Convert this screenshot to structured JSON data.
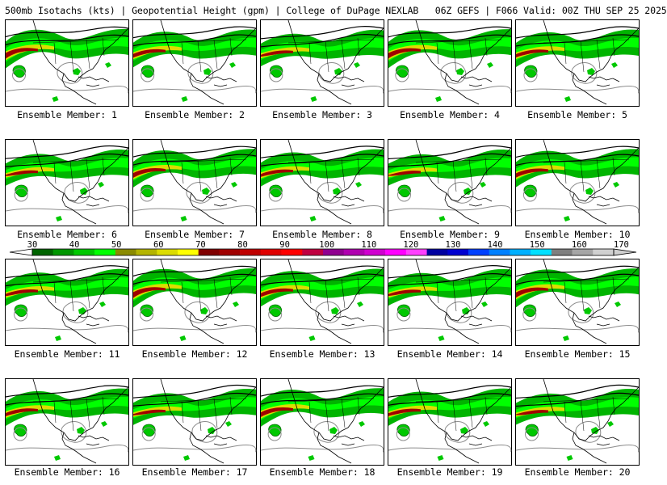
{
  "header": {
    "title": "500mb Isotachs (kts) | Geopotential Height (gpm) | College of DuPage NEXLAB   06Z GEFS | F066 Valid: 00Z THU SEP 25 2025"
  },
  "members": [
    {
      "label": "Ensemble Member: 1"
    },
    {
      "label": "Ensemble Member: 2"
    },
    {
      "label": "Ensemble Member: 3"
    },
    {
      "label": "Ensemble Member: 4"
    },
    {
      "label": "Ensemble Member: 5"
    },
    {
      "label": "Ensemble Member: 6"
    },
    {
      "label": "Ensemble Member: 7"
    },
    {
      "label": "Ensemble Member: 8"
    },
    {
      "label": "Ensemble Member: 9"
    },
    {
      "label": "Ensemble Member: 10"
    },
    {
      "label": "Ensemble Member: 11"
    },
    {
      "label": "Ensemble Member: 12"
    },
    {
      "label": "Ensemble Member: 13"
    },
    {
      "label": "Ensemble Member: 14"
    },
    {
      "label": "Ensemble Member: 15"
    },
    {
      "label": "Ensemble Member: 16"
    },
    {
      "label": "Ensemble Member: 17"
    },
    {
      "label": "Ensemble Member: 18"
    },
    {
      "label": "Ensemble Member: 19"
    },
    {
      "label": "Ensemble Member: 20"
    }
  ],
  "colorbar": {
    "ticks": [
      "30",
      "40",
      "50",
      "60",
      "70",
      "80",
      "90",
      "100",
      "110",
      "120",
      "130",
      "140",
      "150",
      "160",
      "170"
    ],
    "colors": [
      "#006400",
      "#009600",
      "#00c800",
      "#00ff00",
      "#8b8b00",
      "#b4b400",
      "#dcdc00",
      "#ffff00",
      "#800000",
      "#a00000",
      "#c00000",
      "#e00000",
      "#ff0000",
      "#c00040",
      "#900090",
      "#b000b0",
      "#d000d0",
      "#ff00ff",
      "#ff40ff",
      "#0000a0",
      "#0000d0",
      "#0040ff",
      "#0080ff",
      "#00b0ff",
      "#00e0ff",
      "#7f7f7f",
      "#a6a6a6",
      "#d0d0d0"
    ]
  }
}
